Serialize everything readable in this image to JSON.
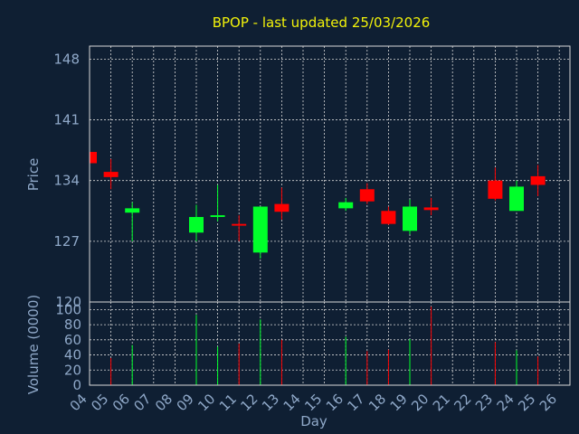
{
  "chart_data": [
    {
      "type": "candlestick",
      "title": "BPOP - last updated 25/03/2026",
      "ylabel": "Price",
      "ylim": [
        120,
        149.5
      ],
      "yticks": [
        120,
        127,
        134,
        141,
        148
      ],
      "grid": true,
      "up_color": "#00ff2a",
      "down_color": "#ff0000",
      "candles": [
        {
          "day": 4,
          "open": 137.3,
          "high": 137.3,
          "low": 136.0,
          "close": 136.0
        },
        {
          "day": 5,
          "open": 135.0,
          "high": 136.5,
          "low": 133.0,
          "close": 134.4
        },
        {
          "day": 6,
          "open": 130.3,
          "high": 131.5,
          "low": 127.0,
          "close": 130.8
        },
        {
          "day": 9,
          "open": 128.0,
          "high": 131.2,
          "low": 127.0,
          "close": 129.8
        },
        {
          "day": 10,
          "open": 129.8,
          "high": 133.5,
          "low": 129.3,
          "close": 130.0
        },
        {
          "day": 11,
          "open": 129.0,
          "high": 130.0,
          "low": 127.0,
          "close": 128.8
        },
        {
          "day": 12,
          "open": 125.7,
          "high": 131.0,
          "low": 125.0,
          "close": 131.0
        },
        {
          "day": 13,
          "open": 131.3,
          "high": 133.2,
          "low": 129.5,
          "close": 130.4
        },
        {
          "day": 16,
          "open": 130.8,
          "high": 132.0,
          "low": 130.5,
          "close": 131.5
        },
        {
          "day": 17,
          "open": 133.0,
          "high": 133.7,
          "low": 131.3,
          "close": 131.6
        },
        {
          "day": 18,
          "open": 130.5,
          "high": 131.0,
          "low": 128.9,
          "close": 129.0
        },
        {
          "day": 19,
          "open": 128.2,
          "high": 131.8,
          "low": 127.8,
          "close": 131.0
        },
        {
          "day": 20,
          "open": 130.9,
          "high": 132.0,
          "low": 130.0,
          "close": 130.6
        },
        {
          "day": 23,
          "open": 134.0,
          "high": 135.5,
          "low": 131.7,
          "close": 131.9
        },
        {
          "day": 24,
          "open": 130.5,
          "high": 134.0,
          "low": 130.5,
          "close": 133.3
        },
        {
          "day": 25,
          "open": 134.5,
          "high": 135.8,
          "low": 132.2,
          "close": 133.5
        }
      ]
    },
    {
      "type": "bar",
      "xlabel": "Day",
      "ylabel": "Volume (0000)",
      "ylim": [
        0,
        110
      ],
      "yticks": [
        0,
        20,
        40,
        60,
        80,
        100
      ],
      "top_tick_label": "120",
      "x_ticks": [
        "04",
        "05",
        "06",
        "07",
        "08",
        "09",
        "10",
        "11",
        "12",
        "13",
        "14",
        "15",
        "16",
        "17",
        "18",
        "19",
        "20",
        "21",
        "22",
        "23",
        "24",
        "25",
        "26"
      ],
      "volumes": [
        {
          "day": 5,
          "value": 36,
          "dir": "down"
        },
        {
          "day": 6,
          "value": 53,
          "dir": "up"
        },
        {
          "day": 9,
          "value": 93,
          "dir": "up"
        },
        {
          "day": 10,
          "value": 51,
          "dir": "up"
        },
        {
          "day": 11,
          "value": 55,
          "dir": "down"
        },
        {
          "day": 12,
          "value": 87,
          "dir": "up"
        },
        {
          "day": 13,
          "value": 60,
          "dir": "down"
        },
        {
          "day": 16,
          "value": 64,
          "dir": "up"
        },
        {
          "day": 17,
          "value": 45,
          "dir": "down"
        },
        {
          "day": 18,
          "value": 47,
          "dir": "down"
        },
        {
          "day": 19,
          "value": 61,
          "dir": "up"
        },
        {
          "day": 20,
          "value": 104,
          "dir": "down"
        },
        {
          "day": 23,
          "value": 57,
          "dir": "down"
        },
        {
          "day": 24,
          "value": 46,
          "dir": "up"
        },
        {
          "day": 25,
          "value": 38,
          "dir": "down"
        }
      ]
    }
  ]
}
